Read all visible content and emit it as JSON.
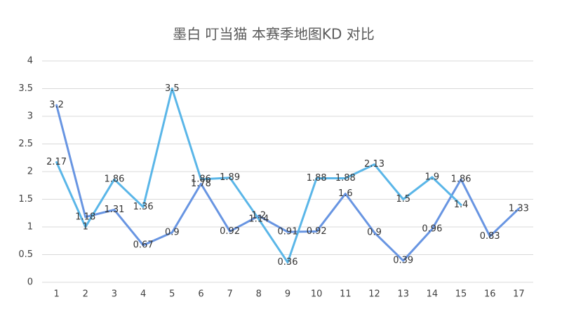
{
  "chart_data": {
    "type": "line",
    "title": "墨白 叮当猫 本赛季地图KD 对比",
    "categories": [
      "1",
      "2",
      "3",
      "4",
      "5",
      "6",
      "7",
      "8",
      "9",
      "10",
      "11",
      "12",
      "13",
      "14",
      "15",
      "16",
      "17"
    ],
    "series": [
      {
        "color": "#6895e2",
        "values": [
          3.2,
          1.18,
          1.31,
          0.67,
          0.9,
          1.78,
          0.92,
          1.2,
          0.91,
          0.92,
          1.6,
          0.9,
          0.39,
          0.96,
          1.86,
          0.83,
          1.33
        ]
      },
      {
        "color": "#5ab6e8",
        "values": [
          2.17,
          1,
          1.86,
          1.36,
          3.5,
          1.86,
          1.89,
          1.14,
          0.36,
          1.88,
          1.88,
          2.13,
          1.5,
          1.9,
          1.4,
          null,
          null
        ]
      }
    ],
    "ylim": [
      0,
      4
    ],
    "yticks": [
      0,
      0.5,
      1,
      1.5,
      2,
      2.5,
      3,
      3.5,
      4
    ],
    "grid": true
  }
}
